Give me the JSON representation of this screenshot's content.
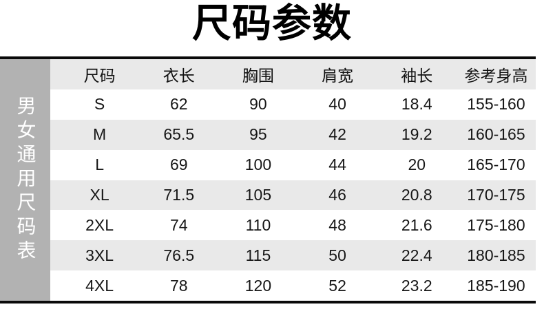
{
  "page": {
    "title": "尺码参数",
    "sidebar_label": "男女通用尺码表"
  },
  "table": {
    "columns": [
      "尺码",
      "衣长",
      "胸围",
      "肩宽",
      "袖长",
      "参考身高"
    ],
    "rows": [
      [
        "S",
        "62",
        "90",
        "40",
        "18.4",
        "155-160"
      ],
      [
        "M",
        "65.5",
        "95",
        "42",
        "19.2",
        "160-165"
      ],
      [
        "L",
        "69",
        "100",
        "44",
        "20",
        "165-170"
      ],
      [
        "XL",
        "71.5",
        "105",
        "46",
        "20.8",
        "170-175"
      ],
      [
        "2XL",
        "74",
        "110",
        "48",
        "21.6",
        "175-180"
      ],
      [
        "3XL",
        "76.5",
        "115",
        "50",
        "22.4",
        "180-185"
      ],
      [
        "4XL",
        "78",
        "120",
        "52",
        "23.2",
        "185-190"
      ]
    ]
  },
  "colors": {
    "sidebar_bg": "#b2b2b2",
    "alt_row_bg": "#e9e9e9",
    "rule": "#0a0a0a",
    "title_text": "#000000",
    "cell_text": "#161616",
    "sidebar_text": "#ffffff"
  }
}
